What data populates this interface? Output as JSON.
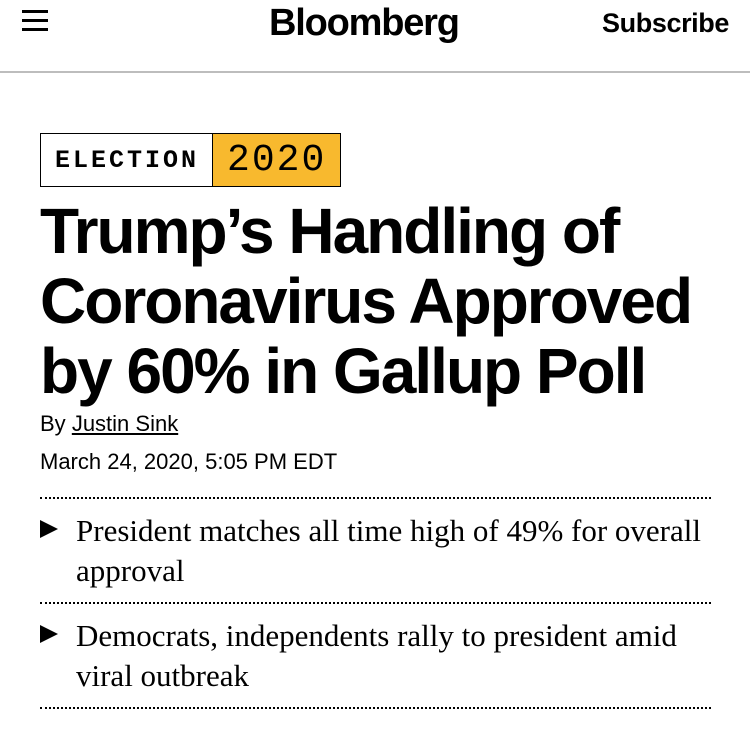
{
  "header": {
    "menu_icon": "hamburger-menu-icon",
    "logo": "Bloomberg",
    "subscribe_label": "Subscribe"
  },
  "tag": {
    "word": "ELECTION",
    "year": "2020",
    "year_color": "#f8b92e"
  },
  "article": {
    "headline": "Trump’s Handling of Coronavirus Approved by 60% in Gallup Poll",
    "byline_prefix": "By",
    "author": "Justin Sink",
    "date": "March 24, 2020, 5:05 PM EDT"
  },
  "bullets": [
    {
      "text": "President matches all time high of 49% for overall approval",
      "icon": "play-triangle-icon"
    },
    {
      "text": "Democrats, independents rally to president amid viral outbreak",
      "icon": "play-triangle-icon"
    }
  ]
}
